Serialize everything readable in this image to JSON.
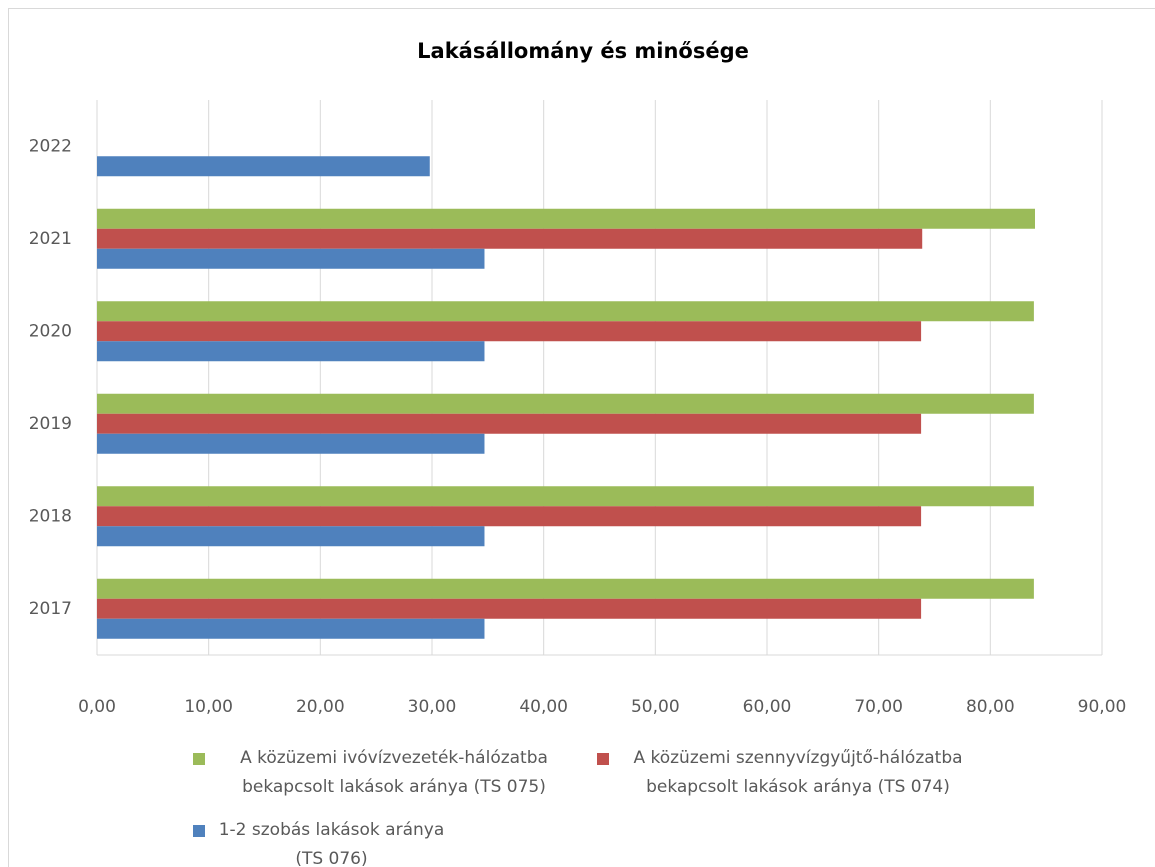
{
  "chart_data": {
    "type": "bar",
    "orientation": "horizontal",
    "title": "Lakásállomány és minősége",
    "categories": [
      "2017",
      "2018",
      "2019",
      "2020",
      "2021",
      "2022"
    ],
    "series": [
      {
        "name": "A közüzemi ivóvízvezeték-hálózatba bekapcsolt lakások aránya (TS 075)",
        "color": "#9bbb59",
        "values": [
          83.9,
          83.9,
          83.9,
          83.9,
          84.0,
          null
        ]
      },
      {
        "name": "A közüzemi szennyvízgyűjtő-hálózatba bekapcsolt lakások aránya (TS 074)",
        "color": "#c0504d",
        "values": [
          73.8,
          73.8,
          73.8,
          73.8,
          73.9,
          null
        ]
      },
      {
        "name": "1-2 szobás lakások aránya (TS 076)",
        "color": "#4f81bd",
        "values": [
          34.7,
          34.7,
          34.7,
          34.7,
          34.7,
          29.8
        ]
      }
    ],
    "xlim": [
      0,
      90
    ],
    "xticks": [
      {
        "value": 0,
        "label": "0,00"
      },
      {
        "value": 10,
        "label": "10,00"
      },
      {
        "value": 20,
        "label": "20,00"
      },
      {
        "value": 30,
        "label": "30,00"
      },
      {
        "value": 40,
        "label": "40,00"
      },
      {
        "value": 50,
        "label": "50,00"
      },
      {
        "value": 60,
        "label": "60,00"
      },
      {
        "value": 70,
        "label": "70,00"
      },
      {
        "value": 80,
        "label": "80,00"
      },
      {
        "value": 90,
        "label": "90,00"
      }
    ],
    "grid": true
  }
}
